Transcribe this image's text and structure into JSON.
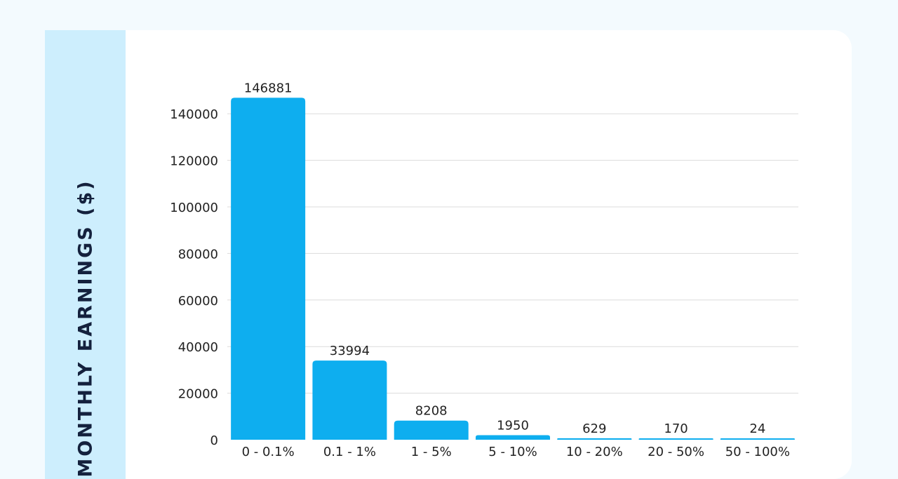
{
  "chart_data": {
    "type": "bar",
    "ylabel": "MONTHLY EARNINGS ($)",
    "categories": [
      "0 - 0.1%",
      "0.1 - 1%",
      "1 - 5%",
      "5 - 10%",
      "10 - 20%",
      "20 - 50%",
      "50 - 100%"
    ],
    "values": [
      146881,
      33994,
      8208,
      1950,
      629,
      170,
      24
    ],
    "yticks": [
      0,
      20000,
      40000,
      60000,
      80000,
      100000,
      120000,
      140000
    ],
    "ylim": [
      0,
      150000
    ],
    "grid": true,
    "bar_color": "#0eaeef",
    "grid_color": "#dcdcdc"
  }
}
